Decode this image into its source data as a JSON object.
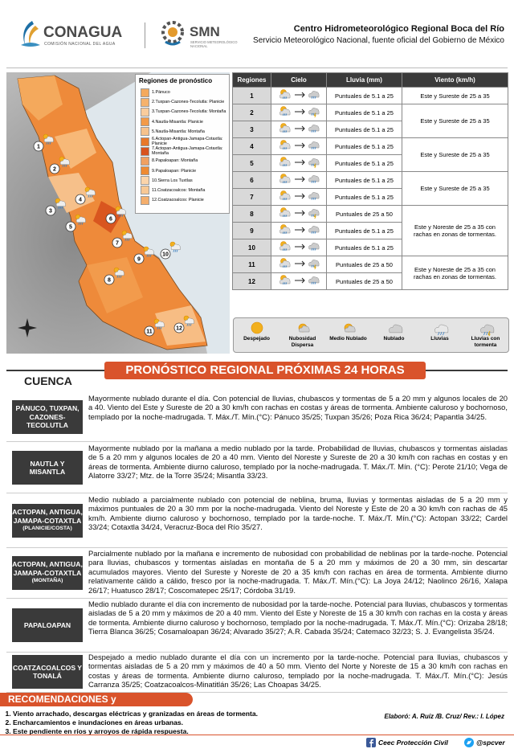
{
  "header": {
    "conagua": "CONAGUA",
    "conagua_sub": "COMISIÓN NACIONAL DEL AGUA",
    "smn": "SMN",
    "smn_sub": "SERVICIO METEOROLÓGICO NACIONAL",
    "title": "Centro Hidrometeorológico Regional Boca del Río",
    "subtitle": "Servicio Meteorológico Nacional, fuente oficial del Gobierno de México"
  },
  "map": {
    "legend_title": "Regiones de pronóstico",
    "regions": [
      {
        "label": "1.Pánuco",
        "color": "#f4a95c"
      },
      {
        "label": "2.Tuxpan-Cazones-Tecolutla: Planicie",
        "color": "#f5b26c"
      },
      {
        "label": "3.Tuxpan-Cazones-Tecolutla: Montaña",
        "color": "#f9cc9c"
      },
      {
        "label": "4.Nautla-Misantla: Planicie",
        "color": "#f29a48"
      },
      {
        "label": "5.Nautla-Misantla: Montaña",
        "color": "#f6c28c"
      },
      {
        "label": "6.Actopan-Antigua-Jamapa-Cotaxtla: Planicie",
        "color": "#e8782a"
      },
      {
        "label": "7.Actopan-Antigua-Jamapa-Cotaxtla: Montaña",
        "color": "#d8531e"
      },
      {
        "label": "8.Papaloapan: Montaña",
        "color": "#f0a060"
      },
      {
        "label": "9.Papaloapan: Planicie",
        "color": "#ee8a32"
      },
      {
        "label": "10.Sierra Los Tuxtlas",
        "color": "#fbd4aa"
      },
      {
        "label": "11.Coatzacoalcos: Montaña",
        "color": "#f8c894"
      },
      {
        "label": "12.Coatzacoalcos: Planicie",
        "color": "#f4ae6c"
      }
    ],
    "markers": [
      "1",
      "2",
      "3",
      "4",
      "5",
      "6",
      "7",
      "8",
      "9",
      "10",
      "11",
      "12"
    ]
  },
  "table": {
    "headers": [
      "Regiones",
      "Cielo",
      "Lluvia (mm)",
      "Viento (km/h)"
    ],
    "regions": [
      "1",
      "2",
      "3",
      "4",
      "5",
      "6",
      "7",
      "8",
      "9",
      "10",
      "11",
      "12"
    ],
    "lluvia": [
      "Puntuales de 5.1 a 25",
      "Puntuales de 5.1 a 25",
      "Puntuales de 5.1 a 25",
      "Puntuales de 5.1 a 25",
      "Puntuales de 5.1 a 25",
      "Puntuales de 5.1 a 25",
      "Puntuales de 5.1 a 25",
      "Puntuales de 25 a 50",
      "Puntuales de 5.1 a 25",
      "Puntuales de 5.1 a 25",
      "Puntuales de 25 a 50",
      "Puntuales de 25 a 50"
    ],
    "viento": [
      "Este y Sureste de 25 a 35",
      "Este y Sureste de 25 a 35",
      null,
      "Este y Sureste de 25 a 35",
      null,
      "Este y Sureste de 25 a 35",
      null,
      "Este y Noreste de 25 a 35 con rachas en zonas de tormentas.",
      null,
      null,
      "Este y Noreste de 25 a 35 con rachas en zonas de tormentas.",
      null
    ]
  },
  "icon_legend": [
    "Despejado",
    "Nubosidad Dispersa",
    "Medio Nublado",
    "Nublado",
    "Lluvias",
    "Lluvias con tormenta"
  ],
  "forecast": {
    "title": "PRONÓSTICO REGIONAL PRÓXIMAS 24 HORAS",
    "cuenca_label": "CUENCA",
    "rows": [
      {
        "cuenca": "PÁNUCO, TUXPAN, CAZONES-TECOLUTLA",
        "text": "Mayormente nublado durante el día. Con potencial de lluvias, chubascos y tormentas de 5 a 20 mm y algunos locales de 20 a 40. Viento del Este y Sureste de 20 a 30 km/h con rachas en costas y áreas de tormenta. Ambiente caluroso y bochornoso, templado por la noche-madrugada. T. Máx./T. Mín.(°C): Pánuco 35/25; Tuxpan 35/26; Poza Rica 36/24; Papantla 34/25."
      },
      {
        "cuenca": "NAUTLA Y MISANTLA",
        "text": "Mayormente nublado por la mañana a medio nublado por la tarde. Probabilidad de lluvias, chubascos y tormentas aisladas de 5 a 20 mm y algunos locales de 20 a 40 mm. Viento del Noreste y Sureste de 20 a 30 km/h con rachas en costas y en áreas de tormenta. Ambiente diurno caluroso, templado por la noche-madrugada. T. Máx./T. Mín. (°C): Perote 21/10; Vega de Alatorre 33/27; Mtz. de la Torre 35/24; Misantla 33/23."
      },
      {
        "cuenca": "ACTOPAN, ANTIGUA, JAMAPA-COTAXTLA",
        "note": "(PLANICIE/COSTA)",
        "text": "Medio nublado a parcialmente nublado con potencial de neblina, bruma, lluvias y tormentas aisladas de 5 a 20 mm y máximos puntuales de 20 a 30 mm por la noche-madrugada. Viento del Noreste y Este de 20 a 30 km/h con rachas de 45 km/h. Ambiente diurno caluroso y bochornoso, templado por la tarde-noche. T. Máx./T. Mín.(°C): Actopan 33/22; Cardel 33/24; Cotaxtla 34/24, Veracruz-Boca del Río 35/27."
      },
      {
        "cuenca": "ACTOPAN, ANTIGUA, JAMAPA-COTAXTLA",
        "note": "(MONTAÑA)",
        "text": "Parcialmente nublado por la mañana e incremento de nubosidad con probabilidad de neblinas por la tarde-noche. Potencial para lluvias, chubascos y tormentas aisladas en montaña de 5 a 20 mm y máximos de 20 a 30 mm, sin descartar acumulados mayores. Viento del Sureste y Noreste de 20 a 35 km/h con rachas en área de tormenta. Ambiente diurno relativamente cálido a cálido, fresco por la noche-madrugada. T. Máx./T. Mín.(°C): La Joya 24/12; Naolinco 26/16, Xalapa 26/17; Huatusco 28/17; Coscomatepec 25/17; Córdoba 31/19."
      },
      {
        "cuenca": "PAPALOAPAN",
        "text": "Medio nublado durante el día con incremento de nubosidad por la tarde-noche. Potencial para lluvias, chubascos y tormentas aisladas de 5 a 20 mm y máximos de 20 a 40 mm. Viento del Este y Noreste de 15 a 30 km/h con rachas en la costa y áreas de tormenta. Ambiente diurno caluroso y bochornoso, templado por la noche-madrugada. T. Máx./T. Mín.(°C): Orizaba 28/18; Tierra Blanca 36/25; Cosamaloapan 36/24; Alvarado 35/27; A.R. Cabada 35/24; Catemaco 32/23; S. J. Evangelista 35/24."
      },
      {
        "cuenca": "COATZACOALCOS Y TONALÁ",
        "text": "Despejado a medio nublado durante el día con un incremento por la tarde-noche. Potencial para lluvias, chubascos y tormentas aisladas de 5 a 20 mm y máximos de 40 a 50 mm. Viento del Norte y Noreste de 15 a 30 km/h con rachas en costas y áreas de tormenta. Ambiente diurno caluroso, templado por la noche-madrugada. T. Máx./T. Mín.(°C): Jesús Carranza 35/25; Coatzacoalcos-Minatitlán 35/26; Las Choapas 34/25."
      }
    ]
  },
  "recommendations": {
    "title": "RECOMENDACIONES y PRECAUCIONES",
    "items": [
      "Viento arrachado, descargas eléctricas y granizadas en áreas de tormenta.",
      "Encharcamientos e inundaciones en áreas urbanas.",
      "Este pendiente en ríos y arroyos de rápida respuesta."
    ]
  },
  "footer": {
    "credits": "Elaboró: A. Ruíz /B. Cruz/ Rev.: I. López",
    "social1": "Ceec Protección Civil",
    "social2": "@spcver"
  }
}
